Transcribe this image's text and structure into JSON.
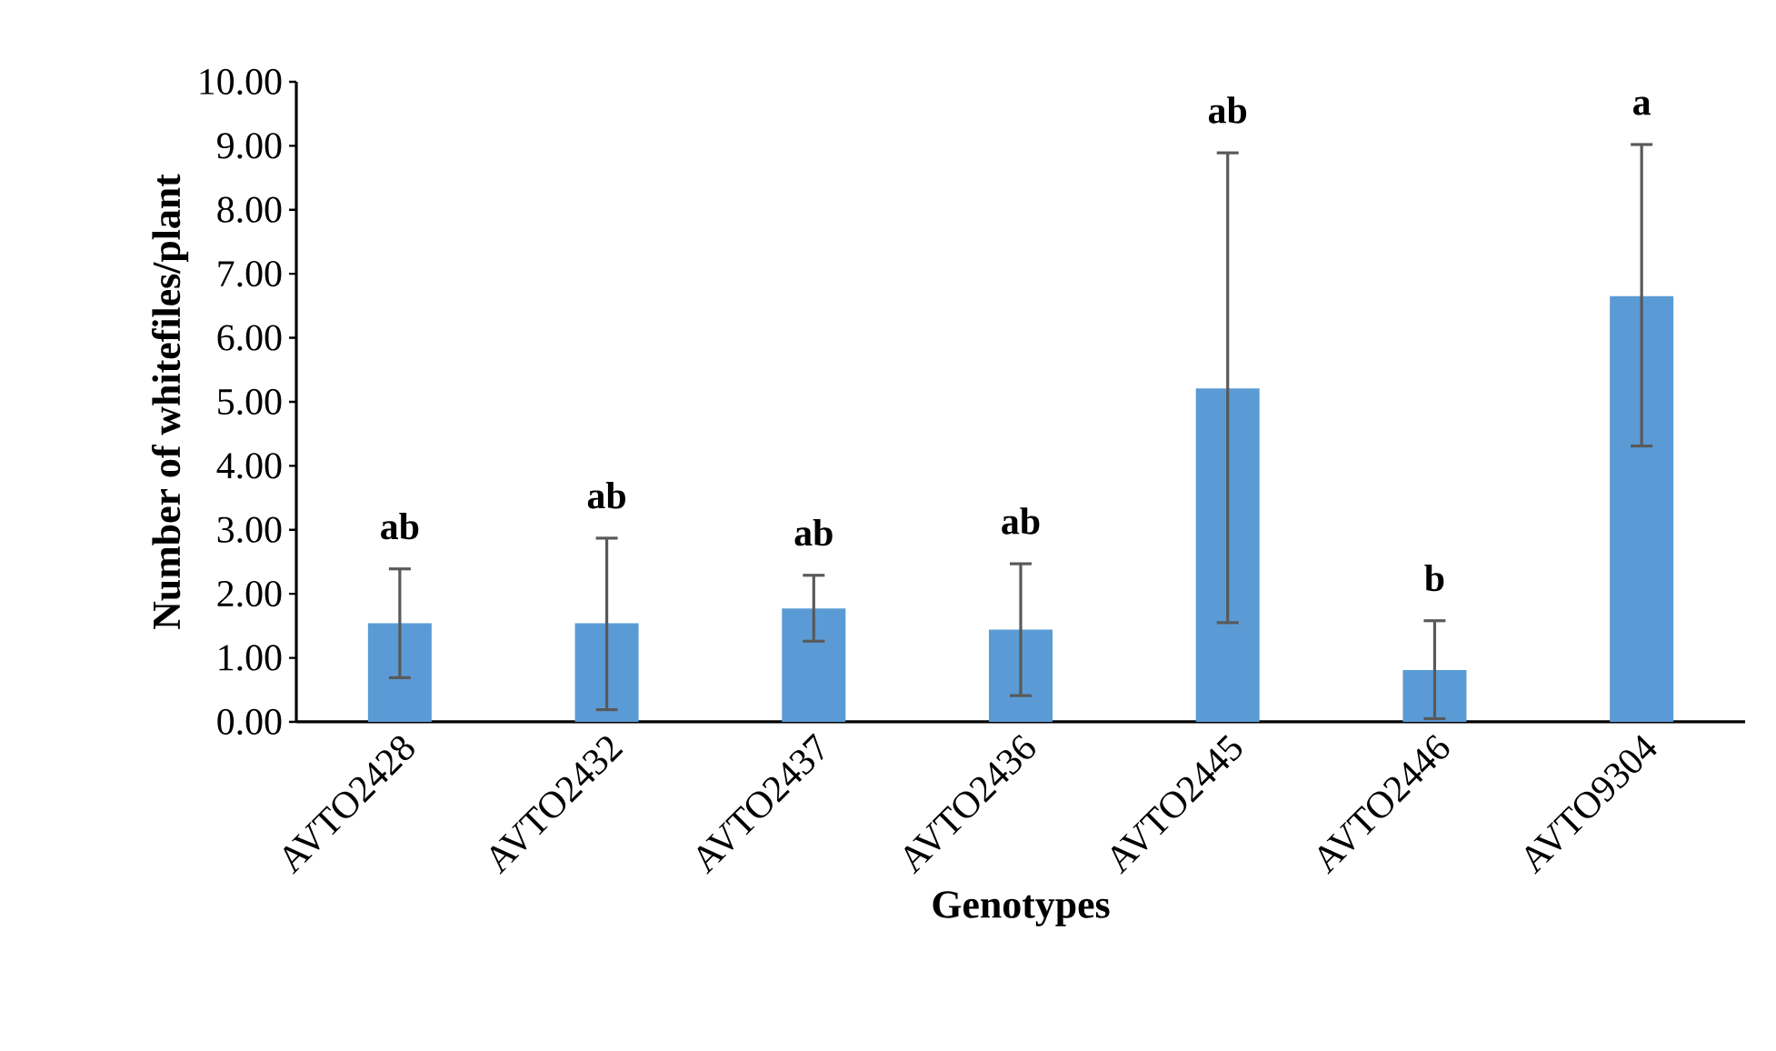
{
  "chart_data": {
    "type": "bar",
    "xlabel": "Genotypes",
    "ylabel": "Number of whitefiles/plant",
    "categories": [
      "AVTO2428",
      "AVTO2432",
      "AVTO2437",
      "AVTO2436",
      "AVTO2445",
      "AVTO2446",
      "AVTO9304"
    ],
    "values": [
      1.54,
      1.54,
      1.77,
      1.44,
      5.21,
      0.81,
      6.65
    ],
    "errors": [
      [
        0.69,
        2.39
      ],
      [
        0.19,
        2.87
      ],
      [
        1.26,
        2.29
      ],
      [
        0.41,
        2.47
      ],
      [
        1.55,
        8.89
      ],
      [
        0.05,
        1.58
      ],
      [
        4.31,
        9.02
      ]
    ],
    "color": "#5b9bd5",
    "ylim": [
      0,
      10
    ],
    "yticks": [
      {
        "value": 0,
        "label": "0.00"
      },
      {
        "value": 1,
        "label": "1.00"
      },
      {
        "value": 2,
        "label": "2.00"
      },
      {
        "value": 3,
        "label": "3.00"
      },
      {
        "value": 4,
        "label": "4.00"
      },
      {
        "value": 5,
        "label": "5.00"
      },
      {
        "value": 6,
        "label": "6.00"
      },
      {
        "value": 7,
        "label": "7.00"
      },
      {
        "value": 8,
        "label": "8.00"
      },
      {
        "value": 9,
        "label": "9.00"
      },
      {
        "value": 10,
        "label": "10.00"
      }
    ],
    "annotations": [
      "ab",
      "ab",
      "ab",
      "ab",
      "ab",
      "b",
      "a"
    ]
  }
}
